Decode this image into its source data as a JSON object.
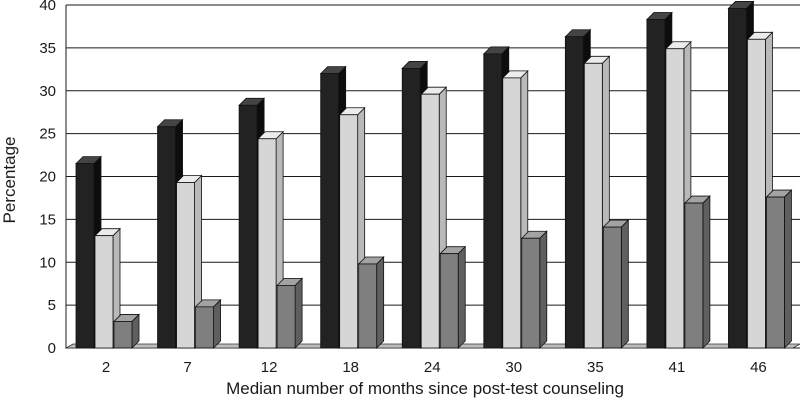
{
  "chart_data": {
    "type": "bar",
    "title": "",
    "xlabel": "Median number of months since post-test counseling",
    "ylabel": "Percentage",
    "ylim": [
      0,
      40
    ],
    "yticks": [
      0,
      5,
      10,
      15,
      20,
      25,
      30,
      35,
      40
    ],
    "grid": true,
    "legend": "none",
    "categories": [
      "2",
      "7",
      "12",
      "18",
      "24",
      "30",
      "35",
      "41",
      "46"
    ],
    "series": [
      {
        "values": [
          21.5,
          25.8,
          28.3,
          32.0,
          32.6,
          34.3,
          36.3,
          38.3,
          39.6
        ]
      },
      {
        "values": [
          13.1,
          19.3,
          24.4,
          27.2,
          29.6,
          31.5,
          33.2,
          34.9,
          36.0
        ]
      },
      {
        "values": [
          3.1,
          4.8,
          7.3,
          9.8,
          11.0,
          12.8,
          14.1,
          16.9,
          17.6
        ]
      }
    ],
    "colors": {
      "series_front": [
        "#222222",
        "#d6d6d6",
        "#7f7f7f"
      ],
      "series_top": [
        "#444444",
        "#ececec",
        "#a3a3a3"
      ],
      "series_side": [
        "#0d0d0d",
        "#b9b9b9",
        "#5f5f5f"
      ],
      "grid": "#1a1a1a",
      "floor": "#bdbdbd"
    }
  }
}
